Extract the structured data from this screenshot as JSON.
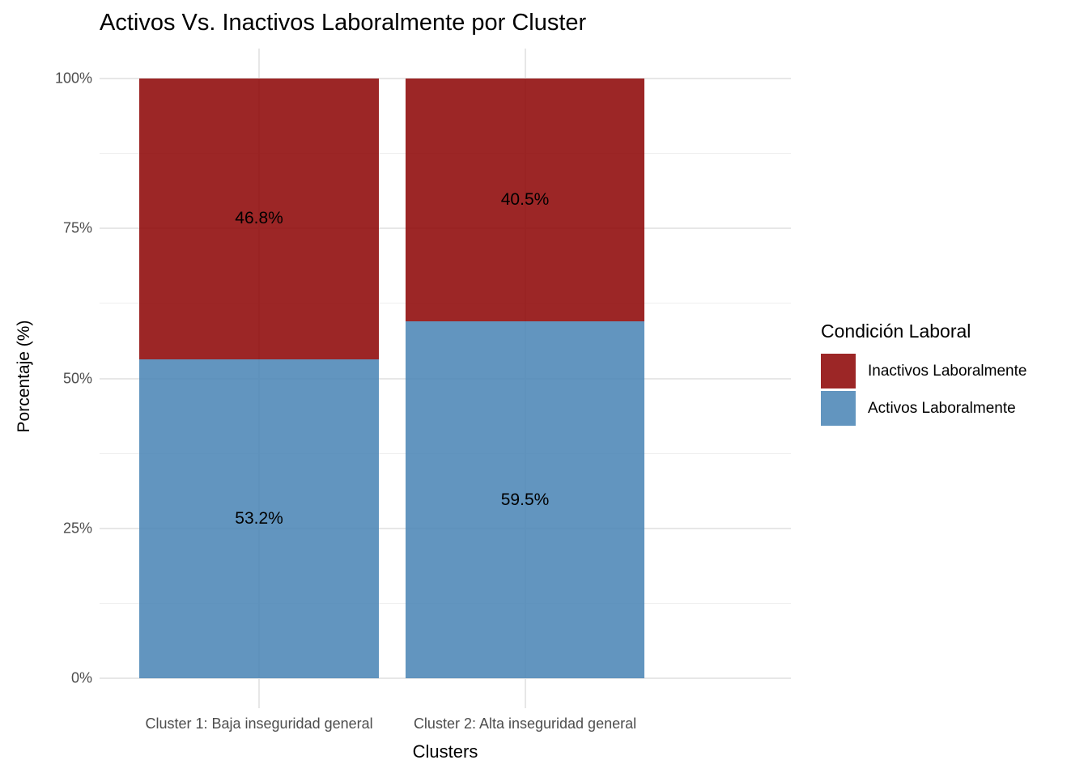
{
  "title": "Activos Vs. Inactivos Laboralmente por Cluster",
  "axes": {
    "x_title": "Clusters",
    "y_title": "Porcentaje (%)"
  },
  "legend": {
    "title": "Condición Laboral",
    "items": [
      {
        "label": "Inactivos Laboralmente",
        "color": "#8B0000"
      },
      {
        "label": "Activos Laboralmente",
        "color": "#4682B4"
      }
    ]
  },
  "colors": {
    "inactivos_fill_base": "#8B0000",
    "activos_fill_base": "#4682B4",
    "fill_alpha": 0.85,
    "major_gridline": "#E7E7E7",
    "minor_gridline": "#EFEFEF",
    "axis_text": "#4D4D4D",
    "title_text": "#000000",
    "background": "#FFFFFF"
  },
  "chart_data": {
    "type": "bar",
    "subtype": "stacked_percentage",
    "title": "Activos Vs. Inactivos Laboralmente por Cluster",
    "xlabel": "Clusters",
    "ylabel": "Porcentaje (%)",
    "categories": [
      "Cluster 1: Baja inseguridad general",
      "Cluster 2: Alta inseguridad general"
    ],
    "series": [
      {
        "name": "Inactivos Laboralmente",
        "stack_position": "top",
        "values": [
          46.8,
          40.5
        ],
        "labels": [
          "46.8%",
          "40.5%"
        ],
        "color": "#8B0000"
      },
      {
        "name": "Activos Laboralmente",
        "stack_position": "bottom",
        "values": [
          53.2,
          59.5
        ],
        "labels": [
          "53.2%",
          "59.5%"
        ],
        "color": "#4682B4"
      }
    ],
    "fill_alpha": 0.85,
    "y_axis": {
      "range": [
        0,
        100
      ],
      "ticks": [
        0,
        25,
        50,
        75,
        100
      ],
      "tick_labels": [
        "0%",
        "25%",
        "50%",
        "75%",
        "100%"
      ],
      "minor_ticks": [
        12.5,
        37.5,
        62.5,
        87.5
      ]
    },
    "grid": true,
    "legend_position": "right"
  }
}
